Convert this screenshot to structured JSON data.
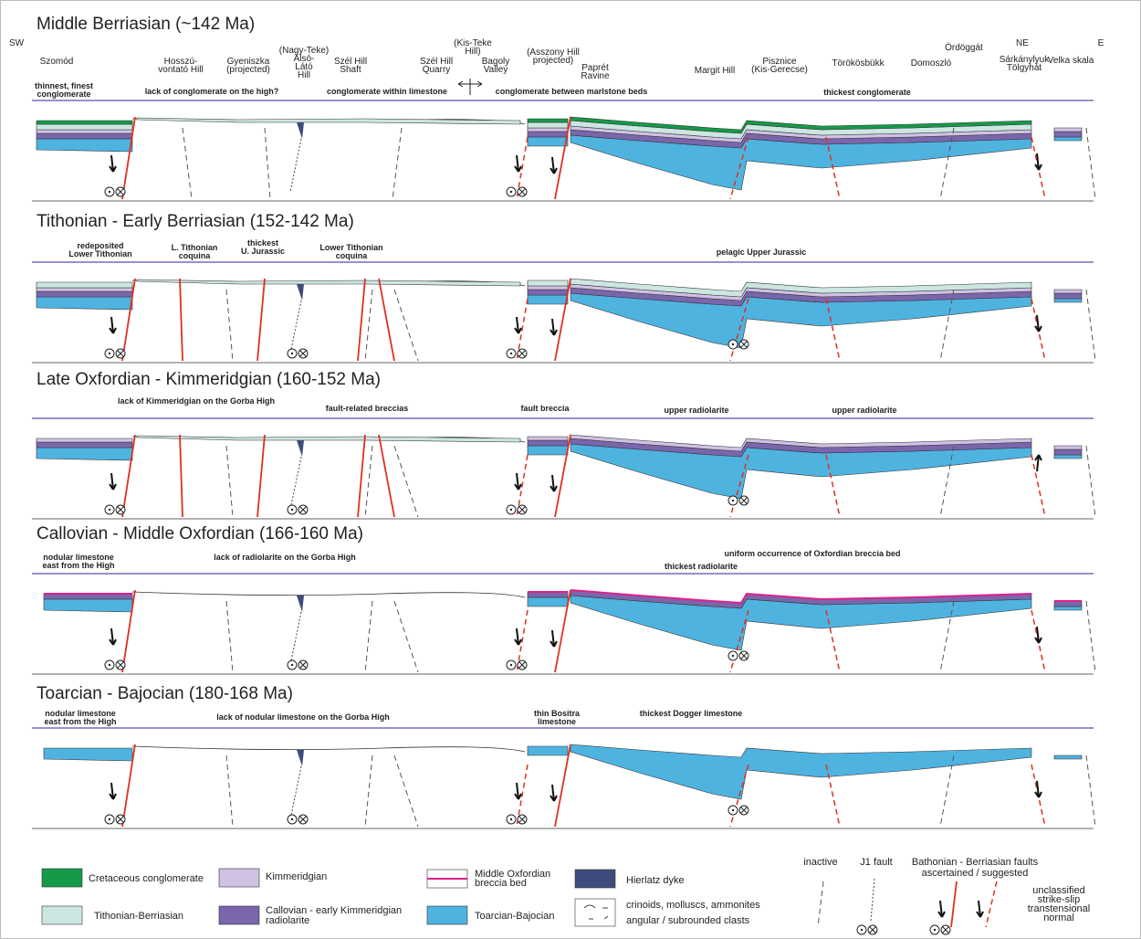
{
  "directions": [
    "SW",
    "NE",
    "E"
  ],
  "localities": [
    [
      "Szomód"
    ],
    [
      "Hosszú-",
      "vontató Hill"
    ],
    [
      "Gyeniszka",
      "(projected)"
    ],
    [
      "(Nagy-Teke)",
      "Alsó-",
      "Látó",
      "Hill"
    ],
    [
      "Szél Hill",
      "Shaft"
    ],
    [
      "Szél Hill",
      "Quarry"
    ],
    [
      "(Kis-Teke",
      "Hill)"
    ],
    [
      "Bagoly",
      "Valley"
    ],
    [
      "(Asszony Hill",
      "projected)"
    ],
    [
      "Paprét",
      "Ravine"
    ],
    [
      "Margit Hill"
    ],
    [
      "Pisznice",
      "(Kis-Gerecse)"
    ],
    [
      "Törökösbükk"
    ],
    [
      "Domoszló"
    ],
    [
      "Ördöggát"
    ],
    [
      "Sárkánylyuk",
      "Tölgyhát"
    ],
    [
      "Velka skala"
    ]
  ],
  "panels": [
    {
      "title": "Middle Berriasian (~142 Ma)",
      "notes": [
        [
          "thinnest, finest",
          "conglomerate"
        ],
        [
          "lack of conglomerate on the high?"
        ],
        [
          "conglomerate within limestone"
        ],
        [
          "conglomerate between marlstone beds"
        ],
        [
          "thickest conglomerate"
        ]
      ]
    },
    {
      "title": "Tithonian - Early Berriasian (152-142 Ma)",
      "notes": [
        [
          "redeposited",
          "Lower Tithonian"
        ],
        [
          "L. Tithonian",
          "coquina"
        ],
        [
          "thickest",
          "U. Jurassic"
        ],
        [
          "Lower Tithonian",
          "coquina"
        ],
        [
          "pelagic Upper Jurassic"
        ]
      ]
    },
    {
      "title": "Late Oxfordian - Kimmeridgian (160-152 Ma)",
      "notes": [
        [
          "lack of Kimmeridgian on the Gorba High"
        ],
        [
          "fault-related breccias"
        ],
        [
          "fault breccia"
        ],
        [
          "upper radiolarite"
        ],
        [
          "upper radiolarite"
        ]
      ]
    },
    {
      "title": "Callovian - Middle Oxfordian (166-160 Ma)",
      "notes": [
        [
          "nodular limestone",
          "east from the High"
        ],
        [
          "lack of radiolarite on the Gorba High"
        ],
        [
          "uniform occurrence of Oxfordian breccia bed"
        ],
        [
          "thickest radiolarite"
        ]
      ]
    },
    {
      "title": "Toarcian - Bajocian (180-168 Ma)",
      "notes": [
        [
          "nodular limestone",
          "east from the High"
        ],
        [
          "lack of nodular limestone on the Gorba High"
        ],
        [
          "thin Bositra",
          "limestone"
        ],
        [
          "thickest Dogger limestone"
        ]
      ]
    }
  ],
  "legend": {
    "cretaceous": [
      "Cretaceous conglomerate"
    ],
    "tithonian": [
      "Tithonian-Berriasian"
    ],
    "kimmeridgian": [
      "Kimmeridgian"
    ],
    "radiolarite": [
      "Callovian - early Kimmeridgian",
      "radiolarite"
    ],
    "breccia": [
      "Middle Oxfordian",
      "breccia bed"
    ],
    "toarcian": [
      "Toarcian-Bajocian"
    ],
    "hierlatz": [
      "Hierlatz dyke"
    ],
    "clasts": [
      "crinoids, molluscs, ammonites",
      "angular / subrounded clasts"
    ],
    "inactive": [
      "inactive"
    ],
    "j1": [
      "J1 fault"
    ],
    "faults": [
      "Bathonian - Berriasian faults",
      "ascertained / suggested"
    ],
    "unclassified": [
      "unclassified",
      "strike-slip",
      "transtensional",
      "normal"
    ]
  }
}
